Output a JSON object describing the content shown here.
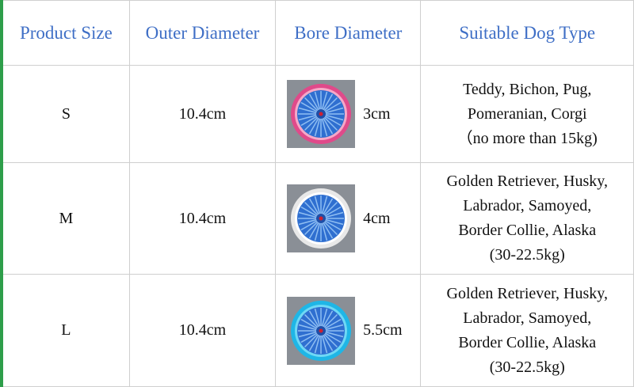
{
  "table": {
    "header": [
      "Product Size",
      "Outer Diameter",
      "Bore Diameter",
      "Suitable Dog Type"
    ],
    "rows": [
      [
        "S",
        "10.4cm",
        "3cm",
        [
          "Teddy, Bichon, Pug,",
          "Pomeranian, Corgi",
          "（no more than 15kg)"
        ]
      ],
      [
        "M",
        "10.4cm",
        "4cm",
        [
          "Golden Retriever, Husky,",
          "Labrador, Samoyed,",
          "Border Collie, Alaska",
          "(30-22.5kg)"
        ]
      ],
      [
        "L",
        "10.4cm",
        "5.5cm",
        [
          "Golden Retriever, Husky,",
          "Labrador, Samoyed,",
          "Border Collie, Alaska",
          "(30-22.5kg)"
        ]
      ]
    ]
  }
}
